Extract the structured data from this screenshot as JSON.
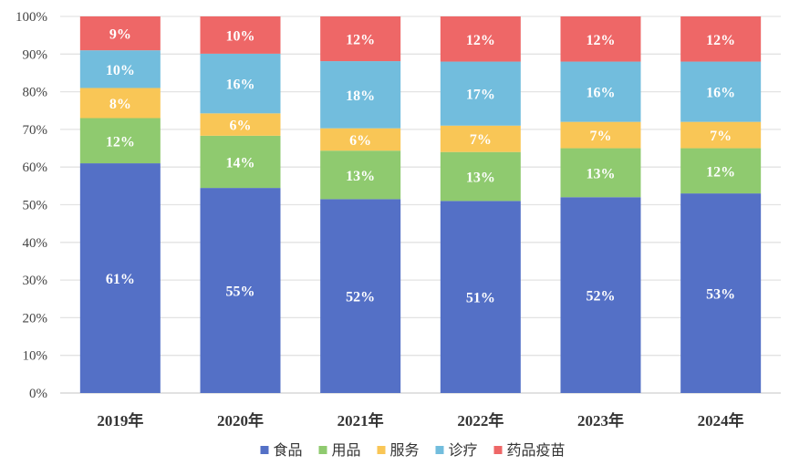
{
  "chart_data": {
    "type": "bar",
    "stacked": true,
    "normalized_percent": true,
    "categories": [
      "2019年",
      "2020年",
      "2021年",
      "2022年",
      "2023年",
      "2024年"
    ],
    "series": [
      {
        "name": "食品",
        "color": "#5470C6",
        "values": [
          61,
          55,
          52,
          51,
          52,
          53
        ]
      },
      {
        "name": "用品",
        "color": "#8FCA6F",
        "values": [
          12,
          14,
          13,
          13,
          13,
          12
        ]
      },
      {
        "name": "服务",
        "color": "#F9C656",
        "values": [
          8,
          6,
          6,
          7,
          7,
          7
        ]
      },
      {
        "name": "诊疗",
        "color": "#72BDDD",
        "values": [
          10,
          16,
          18,
          17,
          16,
          16
        ]
      },
      {
        "name": "药品疫苗",
        "color": "#EE6767",
        "values": [
          9,
          10,
          12,
          12,
          12,
          12
        ]
      }
    ],
    "ylim": [
      0,
      100
    ],
    "yticks": [
      "0%",
      "10%",
      "20%",
      "30%",
      "40%",
      "50%",
      "60%",
      "70%",
      "80%",
      "90%",
      "100%"
    ],
    "grid": true,
    "legend": "bottom",
    "data_labels": true
  }
}
